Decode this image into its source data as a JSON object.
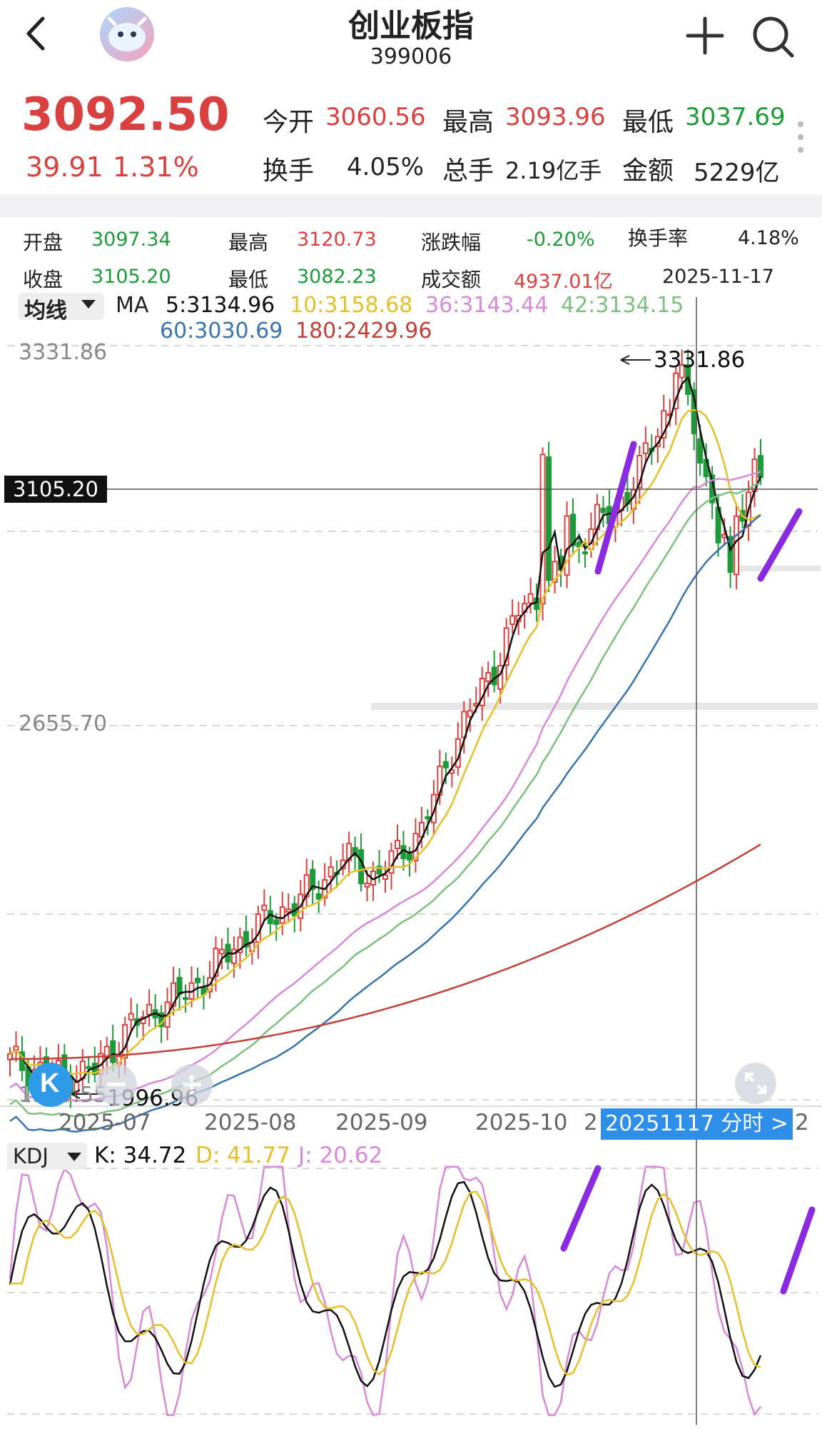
{
  "header": {
    "title": "创业板指",
    "code": "399006"
  },
  "quote": {
    "price": "3092.50",
    "change": "39.91",
    "change_pct": "1.31%",
    "open_label": "今开",
    "open": "3060.56",
    "high_label": "最高",
    "high": "3093.96",
    "low_label": "最低",
    "low": "3037.69",
    "turnover_label": "换手",
    "turnover": "4.05%",
    "volume_label": "总手",
    "volume": "2.19亿手",
    "amount_label": "金额",
    "amount": "5229亿"
  },
  "ohlc_panel": {
    "open_label": "开盘",
    "open": "3097.34",
    "high_label": "最高",
    "high": "3120.73",
    "chg_label": "涨跌幅",
    "chg": "-0.20%",
    "turn_label": "换手率",
    "turn": "4.18%",
    "close_label": "收盘",
    "close": "3105.20",
    "low_label": "最低",
    "low": "3082.23",
    "amount_label": "成交额",
    "amount": "4937.01亿",
    "date": "2025-11-17"
  },
  "ma_legend": {
    "selector": "均线",
    "ma": "MA",
    "ma5": "5:3134.96",
    "ma10": "10:3158.68",
    "ma36": "36:3143.44",
    "ma42": "42:3134.15",
    "ma60": "60:3030.69",
    "ma180": "180:2429.96"
  },
  "price_axis": {
    "top": "3331.86",
    "mid": "2655.70",
    "bottom": "1979.55",
    "crosshair": "3105.20",
    "max_marker": "3331.86",
    "min_marker": "1996.96"
  },
  "time_axis": {
    "labels": [
      "2025-07",
      "2025-08",
      "2025-09",
      "2025-10"
    ],
    "cut_label": "2",
    "tooltip": "20251117 分时 >",
    "edge_label": "2"
  },
  "kdj": {
    "selector": "KDJ",
    "k": "K: 34.72",
    "d": "D: 41.77",
    "j": "J: 20.62"
  },
  "colors": {
    "up": "#d94040",
    "down": "#1e9a3a",
    "ma5": "#111111",
    "ma10": "#e6c02a",
    "ma36": "#d78ad8",
    "ma42": "#7fbf7f",
    "ma60": "#3a74a8",
    "ma180": "#c0403a",
    "annotation": "#8a2be2",
    "tooltip": "#2f8fe8"
  },
  "icons": {
    "back": "chevron-left-icon",
    "logo": "cow-logo-icon",
    "add": "plus-icon",
    "search": "search-icon",
    "more": "vertical-dots-icon",
    "k": "k-line-icon",
    "zoom_out": "minus-icon",
    "zoom_in": "plus-icon",
    "expand": "expand-icon"
  }
}
